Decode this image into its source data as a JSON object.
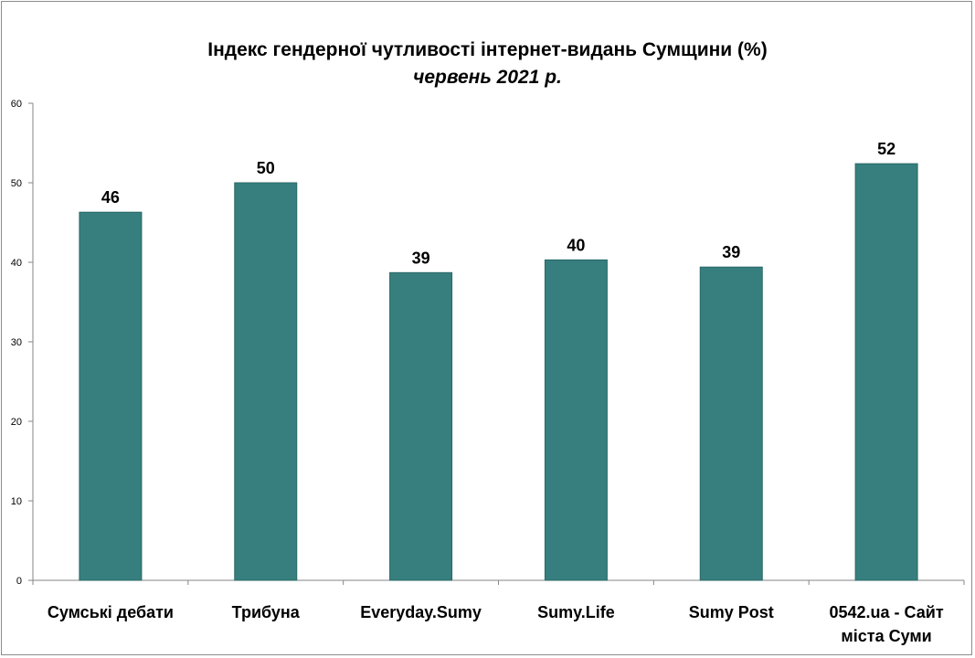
{
  "chart_data": {
    "type": "bar",
    "title": "Індекс гендерної чутливості інтернет-видань Сумщини (%)",
    "subtitle": "червень 2021 р.",
    "categories": [
      [
        "Сумські дебати"
      ],
      [
        "Трибуна"
      ],
      [
        "Everyday.Sumy"
      ],
      [
        "Sumy.Life"
      ],
      [
        "Sumy Post"
      ],
      [
        "0542.ua - Сайт",
        "міста Суми"
      ]
    ],
    "values": [
      46.3,
      50,
      38.7,
      40.3,
      39.4,
      52.4
    ],
    "data_labels": [
      "46",
      "50",
      "39",
      "40",
      "39",
      "52"
    ],
    "ylim": [
      0,
      60
    ],
    "yticks": [
      0,
      10,
      20,
      30,
      40,
      50,
      60
    ],
    "grid": false,
    "bar_color": "#367f7e"
  }
}
